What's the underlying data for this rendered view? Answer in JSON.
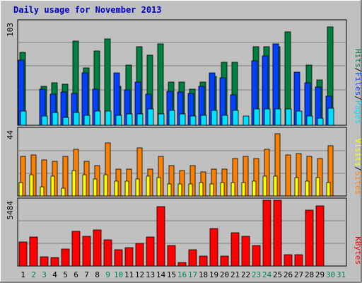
{
  "title": "Daily usage for November 2013",
  "colors": {
    "background": "#c0c0c0",
    "pages": "#00e0ff",
    "files": "#0040ff",
    "hits": "#008040",
    "sites": "#ff8000",
    "visits": "#ffff00",
    "kbytes": "#ff0000",
    "weekend_day_label": "#00805c",
    "weekday_label": "#000000",
    "title": "#0000c0"
  },
  "chart_data": [
    {
      "type": "bar",
      "panel": "top",
      "y_max_label": "103",
      "ylim": [
        0,
        103
      ],
      "legend": [
        "Pages",
        "Files",
        "Hits"
      ],
      "legend_separator": "/",
      "grid": true,
      "categories": [
        "1",
        "2",
        "3",
        "4",
        "5",
        "6",
        "7",
        "8",
        "9",
        "10",
        "11",
        "12",
        "13",
        "14",
        "15",
        "16",
        "17",
        "18",
        "19",
        "20",
        "21",
        "22",
        "23",
        "24",
        "25",
        "26",
        "27",
        "28",
        "29",
        "30",
        "31"
      ],
      "series": [
        {
          "name": "Hits",
          "values": [
            73,
            0,
            39,
            42,
            41,
            84,
            57,
            74,
            86,
            39,
            60,
            78,
            70,
            81,
            43,
            43,
            36,
            43,
            49,
            63,
            63,
            0,
            78,
            78,
            78,
            93,
            0,
            60,
            45,
            98,
            0
          ]
        },
        {
          "name": "Files",
          "values": [
            65,
            0,
            36,
            31,
            33,
            32,
            52,
            36,
            0,
            52,
            35,
            43,
            31,
            0,
            34,
            33,
            32,
            39,
            52,
            47,
            30,
            0,
            64,
            69,
            81,
            0,
            53,
            42,
            38,
            29,
            0
          ]
        },
        {
          "name": "Pages",
          "values": [
            14,
            0,
            9,
            13,
            8,
            13,
            10,
            14,
            14,
            10,
            11,
            11,
            16,
            11,
            15,
            11,
            9,
            10,
            15,
            10,
            15,
            9,
            16,
            16,
            16,
            16,
            14,
            9,
            7,
            17,
            0
          ]
        }
      ]
    },
    {
      "type": "bar",
      "panel": "middle",
      "y_max_label": "44",
      "ylim": [
        0,
        44
      ],
      "legend": [
        "Sites",
        "Visits"
      ],
      "legend_separator": "/",
      "grid": true,
      "categories": [
        "1",
        "2",
        "3",
        "4",
        "5",
        "6",
        "7",
        "8",
        "9",
        "10",
        "11",
        "12",
        "13",
        "14",
        "15",
        "16",
        "17",
        "18",
        "19",
        "20",
        "21",
        "22",
        "23",
        "24",
        "25",
        "26",
        "27",
        "28",
        "29",
        "30",
        "31"
      ],
      "series": [
        {
          "name": "Sites",
          "values": [
            26,
            27,
            24,
            23,
            26,
            31,
            23,
            20,
            35,
            18,
            18,
            32,
            18,
            26,
            20,
            17,
            20,
            16,
            18,
            18,
            25,
            26,
            25,
            31,
            41,
            27,
            28,
            26,
            25,
            33,
            0
          ]
        },
        {
          "name": "Visits",
          "values": [
            9,
            14,
            6,
            13,
            5,
            17,
            14,
            11,
            14,
            10,
            10,
            11,
            13,
            12,
            8,
            8,
            8,
            9,
            8,
            9,
            9,
            9,
            10,
            13,
            13,
            0,
            12,
            10,
            12,
            9,
            0
          ]
        }
      ]
    },
    {
      "type": "bar",
      "panel": "bottom",
      "y_max_label": "5484",
      "ylim": [
        0,
        5484
      ],
      "legend": [
        "KBytes"
      ],
      "grid": true,
      "categories": [
        "1",
        "2",
        "3",
        "4",
        "5",
        "6",
        "7",
        "8",
        "9",
        "10",
        "11",
        "12",
        "13",
        "14",
        "15",
        "16",
        "17",
        "18",
        "19",
        "20",
        "21",
        "22",
        "23",
        "24",
        "25",
        "26",
        "27",
        "28",
        "29",
        "30",
        "31"
      ],
      "series": [
        {
          "name": "KBytes",
          "values": [
            2020,
            2390,
            780,
            690,
            1430,
            2910,
            2490,
            3010,
            2170,
            1380,
            1530,
            1860,
            2420,
            4950,
            1720,
            300,
            1380,
            840,
            3110,
            800,
            2780,
            2460,
            1690,
            5480,
            5480,
            920,
            930,
            4630,
            5040,
            0,
            0
          ]
        }
      ]
    }
  ],
  "day_labels": [
    "1",
    "2",
    "3",
    "4",
    "5",
    "6",
    "7",
    "8",
    "9",
    "10",
    "11",
    "12",
    "13",
    "14",
    "15",
    "16",
    "17",
    "18",
    "19",
    "20",
    "21",
    "22",
    "23",
    "24",
    "25",
    "26",
    "27",
    "28",
    "29",
    "30",
    "31"
  ],
  "weekend_days": [
    "2",
    "3",
    "9",
    "10",
    "16",
    "17",
    "23",
    "24",
    "30",
    "31"
  ]
}
